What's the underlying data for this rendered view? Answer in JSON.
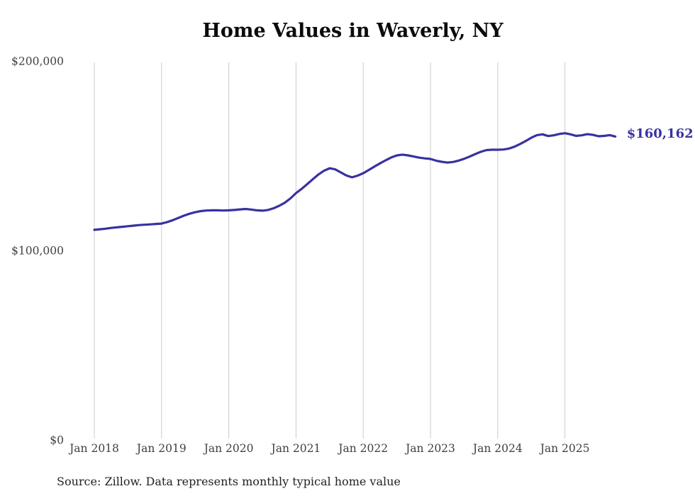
{
  "title": "Home Values in Waverly, NY",
  "source_note": "Source: Zillow. Data represents monthly typical home value",
  "colors": {
    "line": "#3832a0",
    "grid": "#cccccc",
    "axis_text": "#3f3f3f",
    "title_text": "#0b0b0b",
    "source_text": "#222222"
  },
  "chart_data": {
    "type": "line",
    "title": "Home Values in Waverly, NY",
    "series_name": "Monthly typical home value (USD)",
    "x": [
      "2018-01",
      "2018-02",
      "2018-03",
      "2018-04",
      "2018-05",
      "2018-06",
      "2018-07",
      "2018-08",
      "2018-09",
      "2018-10",
      "2018-11",
      "2018-12",
      "2019-01",
      "2019-02",
      "2019-03",
      "2019-04",
      "2019-05",
      "2019-06",
      "2019-07",
      "2019-08",
      "2019-09",
      "2019-10",
      "2019-11",
      "2019-12",
      "2020-01",
      "2020-02",
      "2020-03",
      "2020-04",
      "2020-05",
      "2020-06",
      "2020-07",
      "2020-08",
      "2020-09",
      "2020-10",
      "2020-11",
      "2020-12",
      "2021-01",
      "2021-02",
      "2021-03",
      "2021-04",
      "2021-05",
      "2021-06",
      "2021-07",
      "2021-08",
      "2021-09",
      "2021-10",
      "2021-11",
      "2021-12",
      "2022-01",
      "2022-02",
      "2022-03",
      "2022-04",
      "2022-05",
      "2022-06",
      "2022-07",
      "2022-08",
      "2022-09",
      "2022-10",
      "2022-11",
      "2022-12",
      "2023-01",
      "2023-02",
      "2023-03",
      "2023-04",
      "2023-05",
      "2023-06",
      "2023-07",
      "2023-08",
      "2023-09",
      "2023-10",
      "2023-11",
      "2023-12",
      "2024-01",
      "2024-02",
      "2024-03",
      "2024-04",
      "2024-05",
      "2024-06",
      "2024-07",
      "2024-08",
      "2024-09",
      "2024-10",
      "2024-11",
      "2024-12",
      "2025-01",
      "2025-02",
      "2025-03",
      "2025-04",
      "2025-05",
      "2025-06",
      "2025-07",
      "2025-08",
      "2025-09",
      "2025-10"
    ],
    "values": [
      110900,
      111200,
      111500,
      111900,
      112200,
      112500,
      112800,
      113100,
      113400,
      113600,
      113800,
      114000,
      114200,
      115000,
      116000,
      117200,
      118400,
      119400,
      120200,
      120800,
      121100,
      121200,
      121200,
      121100,
      121200,
      121400,
      121700,
      121900,
      121600,
      121200,
      121000,
      121400,
      122300,
      123600,
      125200,
      127500,
      130300,
      132500,
      135000,
      137600,
      140100,
      142100,
      143400,
      142800,
      141200,
      139600,
      138600,
      139500,
      140800,
      142500,
      144300,
      146000,
      147600,
      149100,
      150200,
      150600,
      150200,
      149600,
      149000,
      148600,
      148300,
      147400,
      146800,
      146400,
      146700,
      147400,
      148400,
      149600,
      150900,
      152100,
      153000,
      153200,
      153200,
      153300,
      153800,
      154800,
      156200,
      157800,
      159500,
      160900,
      161300,
      160400,
      160800,
      161500,
      161900,
      161300,
      160500,
      160800,
      161400,
      161000,
      160300,
      160500,
      160900,
      160162
    ],
    "ylim": [
      0,
      200000
    ],
    "yticks": [
      {
        "value": 0,
        "label": "$0"
      },
      {
        "value": 100000,
        "label": "$100,000"
      },
      {
        "value": 200000,
        "label": "$200,000"
      }
    ],
    "xticks": [
      {
        "index": 0,
        "label": "Jan 2018"
      },
      {
        "index": 12,
        "label": "Jan 2019"
      },
      {
        "index": 24,
        "label": "Jan 2020"
      },
      {
        "index": 36,
        "label": "Jan 2021"
      },
      {
        "index": 48,
        "label": "Jan 2022"
      },
      {
        "index": 60,
        "label": "Jan 2023"
      },
      {
        "index": 72,
        "label": "Jan 2024"
      },
      {
        "index": 84,
        "label": "Jan 2025"
      }
    ],
    "grid": "vertical-only",
    "legend": "none",
    "annotation": {
      "text": "$160,162",
      "position": "line-end"
    }
  }
}
